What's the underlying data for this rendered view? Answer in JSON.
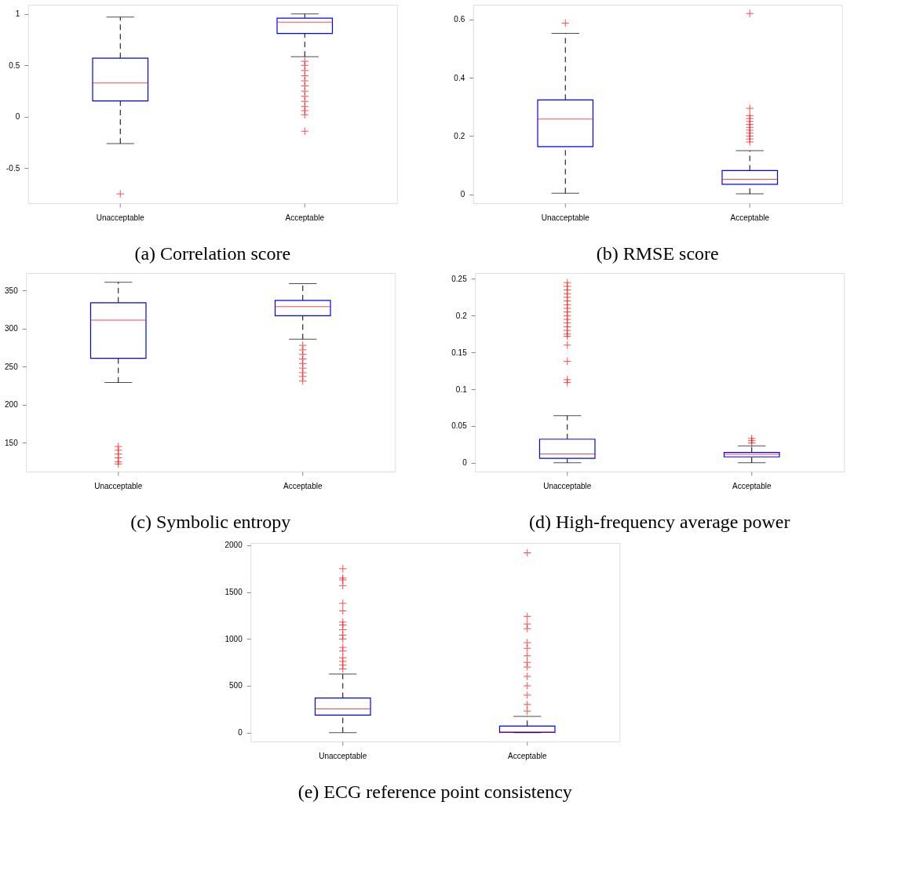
{
  "chart_data": [
    {
      "type": "box",
      "title": "(a) Correlation score",
      "categories": [
        "Unacceptable",
        "Acceptable"
      ],
      "ylim": [
        -0.84,
        1.09
      ],
      "yticks": [
        -0.5,
        0,
        0.5,
        1
      ],
      "line_style": "dashed",
      "series": [
        {
          "color": "#0000ff",
          "boxes": [
            {
              "low": -0.26,
              "q1": 0.155,
              "median": 0.33,
              "q3": 0.57,
              "high": 0.97,
              "outliers": [
                -0.75
              ]
            },
            {
              "low": 0.585,
              "q1": 0.81,
              "median": 0.92,
              "q3": 0.96,
              "high": 1.0,
              "outliers": [
                0.54,
                0.5,
                0.45,
                0.4,
                0.35,
                0.3,
                0.25,
                0.2,
                0.15,
                0.1,
                0.06,
                0.02,
                -0.14
              ]
            }
          ]
        }
      ]
    },
    {
      "type": "box",
      "title": "(b) RMSE score",
      "categories": [
        "Unacceptable",
        "Acceptable"
      ],
      "ylim": [
        -0.03,
        0.65
      ],
      "yticks": [
        0,
        0.2,
        0.4,
        0.6
      ],
      "line_style": "dashed",
      "series": [
        {
          "color": "#0000ff",
          "boxes": [
            {
              "low": 0.004,
              "q1": 0.164,
              "median": 0.258,
              "q3": 0.324,
              "high": 0.552,
              "outliers": [
                0.587
              ]
            },
            {
              "low": 0.002,
              "q1": 0.035,
              "median": 0.052,
              "q3": 0.082,
              "high": 0.15,
              "outliers": [
                0.62,
                0.295,
                0.27,
                0.26,
                0.25,
                0.24,
                0.23,
                0.22,
                0.21,
                0.2,
                0.19,
                0.18
              ]
            }
          ]
        }
      ]
    },
    {
      "type": "box",
      "title": "(c) Symbolic entropy",
      "categories": [
        "Unacceptable",
        "Acceptable"
      ],
      "ylim": [
        112,
        373
      ],
      "yticks": [
        150,
        200,
        250,
        300,
        350
      ],
      "line_style": "dashed",
      "series": [
        {
          "color": "#0000ff",
          "boxes": [
            {
              "low": 229,
              "q1": 261,
              "median": 311,
              "q3": 334,
              "high": 361,
              "outliers": [
                145,
                140,
                135,
                130,
                125,
                122
              ]
            },
            {
              "low": 286,
              "q1": 317,
              "median": 329,
              "q3": 337,
              "high": 359,
              "outliers": [
                278,
                272,
                266,
                260,
                254,
                248,
                242,
                237,
                231
              ]
            }
          ]
        }
      ]
    },
    {
      "type": "box",
      "title": "(d) High-frequency average power",
      "categories": [
        "Unacceptable",
        "Acceptable"
      ],
      "ylim": [
        -0.012,
        0.258
      ],
      "yticks": [
        0,
        0.05,
        0.1,
        0.15,
        0.2,
        0.25
      ],
      "line_style": "dashed",
      "series": [
        {
          "color": "#0000ff",
          "boxes": [
            {
              "low": 0,
              "q1": 0.006,
              "median": 0.012,
              "q3": 0.032,
              "high": 0.064,
              "outliers": [
                0.245,
                0.24,
                0.235,
                0.23,
                0.225,
                0.22,
                0.215,
                0.21,
                0.205,
                0.2,
                0.195,
                0.19,
                0.185,
                0.18,
                0.175,
                0.172,
                0.16,
                0.138,
                0.113,
                0.109
              ]
            },
            {
              "low": 0,
              "q1": 0.008,
              "median": 0.0115,
              "q3": 0.014,
              "high": 0.023,
              "outliers": [
                0.027,
                0.03,
                0.033
              ]
            }
          ]
        }
      ]
    },
    {
      "type": "box",
      "title": "(e) ECG reference point consistency",
      "categories": [
        "Unacceptable",
        "Acceptable"
      ],
      "ylim": [
        -95,
        2025
      ],
      "yticks": [
        0,
        500,
        1000,
        1500,
        2000
      ],
      "line_style": "dashed",
      "series": [
        {
          "color": "#0000ff",
          "boxes": [
            {
              "low": 0,
              "q1": 186,
              "median": 253,
              "q3": 369,
              "high": 625,
              "outliers": [
                1750,
                1650,
                1630,
                1570,
                1380,
                1300,
                1180,
                1150,
                1100,
                1040,
                1000,
                910,
                870,
                800,
                760,
                720,
                680
              ]
            },
            {
              "low": 0,
              "q1": 3,
              "median": 6,
              "q3": 70,
              "high": 174,
              "outliers": [
                1920,
                1240,
                1160,
                1110,
                960,
                900,
                820,
                750,
                700,
                600,
                500,
                400,
                300,
                230
              ]
            }
          ]
        }
      ]
    }
  ]
}
